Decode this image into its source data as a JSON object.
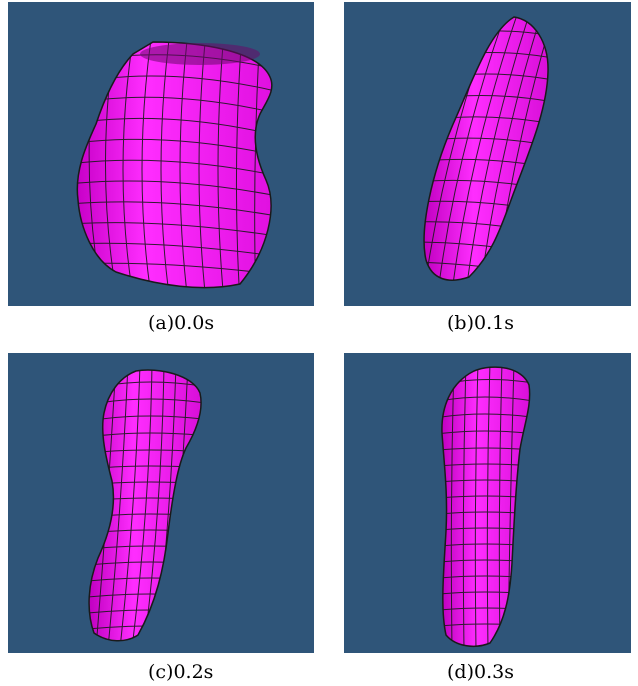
{
  "background_color": "#2f5579",
  "mesh_fill_color": "#ff12ff",
  "mesh_line_color": "#1a1a1a",
  "panels": [
    {
      "id": "a",
      "caption": "(a)0.0s"
    },
    {
      "id": "b",
      "caption": "(b)0.1s"
    },
    {
      "id": "c",
      "caption": "(c)0.2s"
    },
    {
      "id": "d",
      "caption": "(d)0.3s"
    }
  ]
}
